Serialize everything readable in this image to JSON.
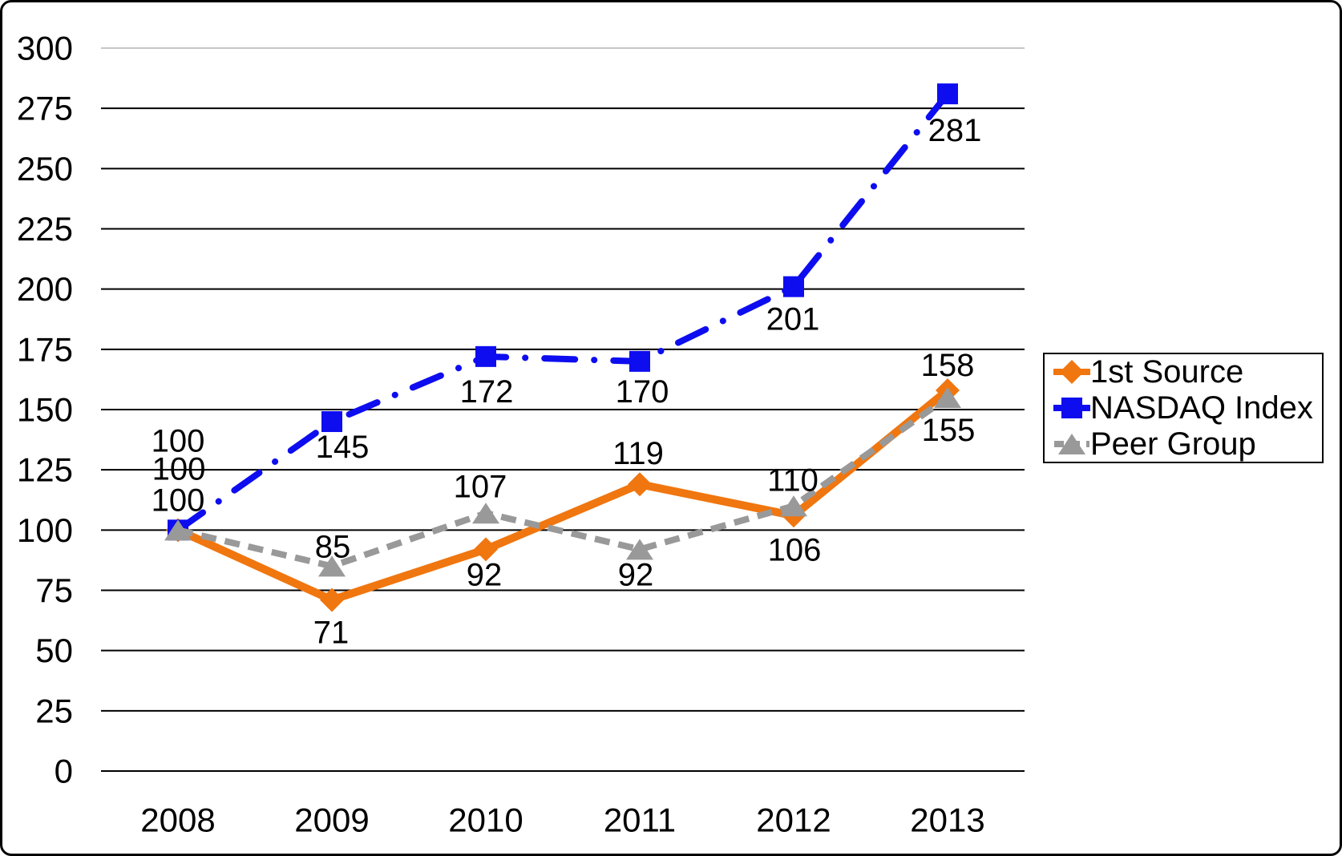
{
  "frame": {
    "background_color": "#ffffff",
    "border_color": "#000000"
  },
  "chart_data": {
    "type": "line",
    "title": "",
    "categories": [
      "2008",
      "2009",
      "2010",
      "2011",
      "2012",
      "2013"
    ],
    "y_axis": {
      "min": 0,
      "max": 300,
      "step": 25,
      "tick_labels": [
        "0",
        "25",
        "50",
        "75",
        "100",
        "125",
        "150",
        "175",
        "200",
        "225",
        "250",
        "275",
        "300"
      ]
    },
    "grid": {
      "horizontal": true,
      "vertical": false,
      "line_color": "#000000",
      "top_line_color": "#c6c6c6"
    },
    "series": [
      {
        "name": "1st Source",
        "color": "#F0760F",
        "marker": "diamond",
        "line_style": "solid",
        "values": [
          100,
          71,
          92,
          119,
          106,
          158
        ],
        "labels": [
          "100",
          "71",
          "92",
          "119",
          "106",
          "158"
        ],
        "label_offsets": [
          [
            0,
            -37
          ],
          [
            -1,
            41
          ],
          [
            -2,
            32
          ],
          [
            -2,
            -38
          ],
          [
            1,
            43
          ],
          [
            0,
            -31
          ]
        ]
      },
      {
        "name": "NASDAQ Index",
        "color": "#0D0DF0",
        "marker": "square",
        "line_style": "dash-dot",
        "values": [
          100,
          145,
          172,
          170,
          201,
          281
        ],
        "labels": [
          "100",
          "145",
          "172",
          "170",
          "201",
          "281"
        ],
        "label_offsets": [
          [
            0,
            -111
          ],
          [
            13,
            32
          ],
          [
            1,
            44
          ],
          [
            3,
            38
          ],
          [
            -1,
            41
          ],
          [
            9,
            46
          ]
        ]
      },
      {
        "name": "Peer Group",
        "color": "#999999",
        "marker": "triangle",
        "line_style": "dashed",
        "values": [
          100,
          85,
          107,
          92,
          110,
          155
        ],
        "labels": [
          "100",
          "85",
          "107",
          "92",
          "110",
          "155"
        ],
        "label_offsets": [
          [
            1,
            -76
          ],
          [
            1,
            -24
          ],
          [
            -7,
            -33
          ],
          [
            -5,
            32
          ],
          [
            -1,
            -32
          ],
          [
            1,
            41
          ]
        ]
      }
    ],
    "legend": {
      "position": "middle-right",
      "border_color": "#000000",
      "entries": [
        "1st Source",
        "NASDAQ Index",
        "Peer Group"
      ]
    }
  }
}
